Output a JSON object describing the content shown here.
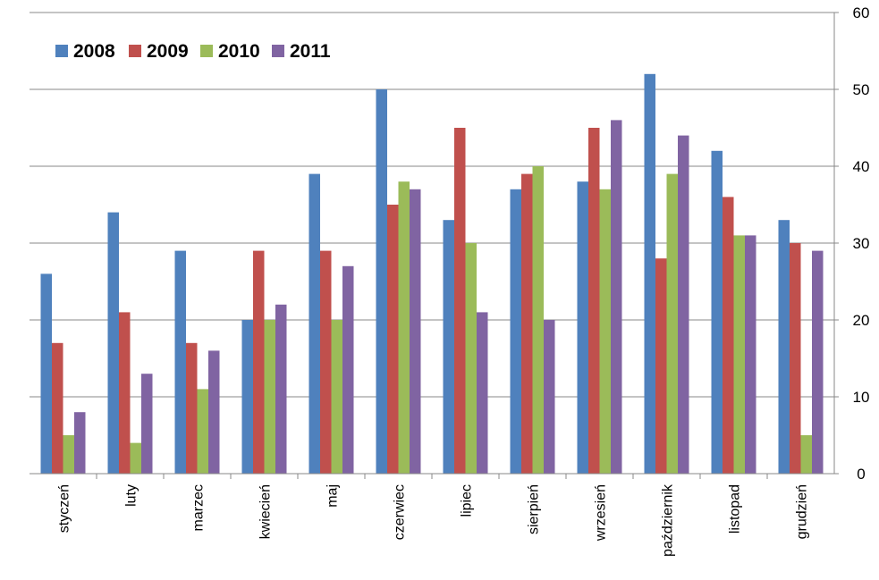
{
  "chart_data": {
    "type": "bar",
    "title": "",
    "xlabel": "",
    "ylabel": "",
    "categories": [
      "styczeń",
      "luty",
      "marzec",
      "kwiecień",
      "maj",
      "czerwiec",
      "lipiec",
      "sierpień",
      "wrzesień",
      "październik",
      "listopad",
      "grudzień"
    ],
    "series": [
      {
        "name": "2008",
        "color": "#4F81BD",
        "values": [
          26,
          34,
          29,
          20,
          39,
          50,
          33,
          37,
          38,
          52,
          42,
          33
        ]
      },
      {
        "name": "2009",
        "color": "#C0504D",
        "values": [
          17,
          21,
          17,
          29,
          29,
          35,
          45,
          39,
          45,
          28,
          36,
          30
        ]
      },
      {
        "name": "2010",
        "color": "#9BBB59",
        "values": [
          5,
          4,
          11,
          20,
          20,
          38,
          30,
          40,
          37,
          39,
          31,
          5
        ]
      },
      {
        "name": "2011",
        "color": "#8064A2",
        "values": [
          8,
          13,
          16,
          22,
          27,
          37,
          21,
          20,
          46,
          44,
          31,
          29
        ]
      }
    ],
    "ylim": [
      0,
      60
    ],
    "yticks": [
      0,
      10,
      20,
      30,
      40,
      50,
      60
    ],
    "y_axis_side": "right",
    "grid": true,
    "legend_position": "top-left"
  }
}
